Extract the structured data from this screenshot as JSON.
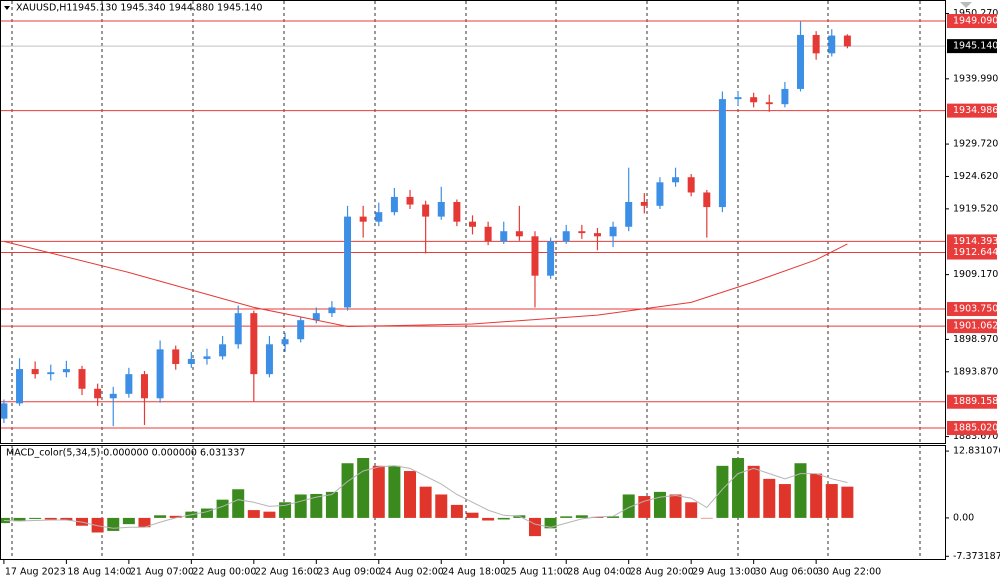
{
  "chart_data": {
    "type": "candlestick",
    "title": "XAUUSD,H1",
    "subtitle": "1945.130 1945.340 1944.880 1945.140",
    "x": [
      0,
      4,
      8,
      12,
      16,
      20,
      24,
      28,
      32,
      36,
      40,
      44,
      48,
      52,
      56,
      60,
      64,
      68,
      72,
      76,
      80,
      84,
      88,
      92,
      96,
      100,
      104,
      108,
      112,
      116,
      120,
      124,
      128,
      132,
      136,
      140,
      144,
      148,
      152,
      156,
      160,
      164,
      168,
      172,
      176,
      180,
      184,
      188,
      192,
      196,
      200,
      204,
      208,
      212,
      216
    ],
    "candles": [
      [
        1886.5,
        1889.5,
        1885.8,
        1888.9
      ],
      [
        1888.9,
        1896.0,
        1888.5,
        1894.3
      ],
      [
        1894.3,
        1895.5,
        1892.8,
        1893.5
      ],
      [
        1893.5,
        1895.0,
        1892.5,
        1893.8
      ],
      [
        1893.8,
        1895.6,
        1893.0,
        1894.3
      ],
      [
        1894.3,
        1894.8,
        1890.2,
        1891.2
      ],
      [
        1891.2,
        1892.0,
        1888.5,
        1889.7
      ],
      [
        1889.7,
        1891.5,
        1885.3,
        1890.4
      ],
      [
        1890.4,
        1894.5,
        1889.8,
        1893.5
      ],
      [
        1893.5,
        1894.0,
        1885.5,
        1889.7
      ],
      [
        1889.7,
        1898.8,
        1889.0,
        1897.4
      ],
      [
        1897.4,
        1898.0,
        1894.2,
        1895.1
      ],
      [
        1895.1,
        1897.0,
        1894.5,
        1895.9
      ],
      [
        1895.9,
        1897.5,
        1895.0,
        1896.3
      ],
      [
        1896.3,
        1899.5,
        1895.8,
        1898.2
      ],
      [
        1898.2,
        1904.3,
        1897.5,
        1903.1
      ],
      [
        1903.1,
        1903.5,
        1889.2,
        1893.5
      ],
      [
        1893.5,
        1899.5,
        1893.0,
        1898.2
      ],
      [
        1898.2,
        1900.0,
        1897.0,
        1899.0
      ],
      [
        1899.0,
        1902.5,
        1898.5,
        1902.0
      ],
      [
        1902.0,
        1904.0,
        1901.5,
        1903.1
      ],
      [
        1903.1,
        1905.0,
        1902.5,
        1904.0
      ],
      [
        1904.0,
        1920.0,
        1903.5,
        1918.3
      ],
      [
        1918.3,
        1920.0,
        1915.0,
        1917.5
      ],
      [
        1917.5,
        1920.5,
        1916.8,
        1919.0
      ],
      [
        1919.0,
        1922.8,
        1918.5,
        1921.4
      ],
      [
        1921.4,
        1922.5,
        1919.5,
        1920.2
      ],
      [
        1920.2,
        1920.8,
        1912.5,
        1918.3
      ],
      [
        1918.3,
        1923.0,
        1917.8,
        1920.6
      ],
      [
        1920.6,
        1921.0,
        1916.8,
        1917.5
      ],
      [
        1917.5,
        1918.5,
        1915.5,
        1916.7
      ],
      [
        1916.7,
        1917.5,
        1913.8,
        1914.4
      ],
      [
        1914.4,
        1917.5,
        1914.0,
        1916.0
      ],
      [
        1916.0,
        1920.0,
        1914.5,
        1915.2
      ],
      [
        1915.2,
        1916.0,
        1904.0,
        1909.0
      ],
      [
        1909.0,
        1915.0,
        1908.5,
        1914.4
      ],
      [
        1914.4,
        1917.0,
        1914.0,
        1916.0
      ],
      [
        1916.0,
        1917.0,
        1914.8,
        1915.7
      ],
      [
        1915.7,
        1916.5,
        1913.0,
        1915.2
      ],
      [
        1915.2,
        1917.5,
        1913.5,
        1916.7
      ],
      [
        1916.7,
        1926.0,
        1916.0,
        1920.6
      ],
      [
        1920.6,
        1922.0,
        1918.8,
        1920.0
      ],
      [
        1920.0,
        1924.5,
        1919.5,
        1923.7
      ],
      [
        1923.7,
        1926.0,
        1923.0,
        1924.5
      ],
      [
        1924.5,
        1925.0,
        1921.5,
        1922.1
      ],
      [
        1922.1,
        1922.5,
        1915.0,
        1919.8
      ],
      [
        1919.8,
        1938.0,
        1919.0,
        1936.8
      ],
      [
        1936.8,
        1938.0,
        1935.8,
        1937.1
      ],
      [
        1937.1,
        1937.8,
        1935.5,
        1936.3
      ],
      [
        1936.3,
        1937.5,
        1934.8,
        1936.0
      ],
      [
        1936.0,
        1939.5,
        1935.5,
        1938.4
      ],
      [
        1938.4,
        1949.0,
        1938.0,
        1946.9
      ],
      [
        1946.9,
        1947.5,
        1943.0,
        1944.0
      ],
      [
        1944.0,
        1947.8,
        1943.5,
        1946.8
      ],
      [
        1946.8,
        1947.0,
        1944.8,
        1945.1
      ]
    ],
    "up_color": "#3d8fe6",
    "down_color": "#e53935",
    "ma": {
      "color": "#e53935",
      "x": [
        0,
        32,
        64,
        80,
        88,
        120,
        152,
        176,
        192,
        208,
        216
      ],
      "values": [
        1914.4,
        1909.5,
        1904.0,
        1902.0,
        1901.0,
        1901.4,
        1902.8,
        1904.8,
        1908.0,
        1911.5,
        1914.0
      ]
    },
    "level_color": "#e83b3b",
    "levels": [
      {
        "value": 1949.09,
        "label": "1949.090"
      },
      {
        "value": 1934.986,
        "label": "1934.986"
      },
      {
        "value": 1914.393,
        "label": "1914.393"
      },
      {
        "value": 1912.644,
        "label": "1912.644"
      },
      {
        "value": 1903.75,
        "label": "1903.750"
      },
      {
        "value": 1901.062,
        "label": "1901.062"
      },
      {
        "value": 1889.158,
        "label": "1889.158"
      },
      {
        "value": 1885.02,
        "label": "1885.020"
      }
    ],
    "last_price": {
      "value": 1945.14,
      "label": "1945.140"
    },
    "xlim": [
      -1,
      241
    ],
    "xticks": [
      {
        "value": 0,
        "label": "17 Aug 2023"
      },
      {
        "value": 16,
        "label": "18 Aug 14:00"
      },
      {
        "value": 32,
        "label": "21 Aug 07:00"
      },
      {
        "value": 48,
        "label": "22 Aug 00:00"
      },
      {
        "value": 64,
        "label": "22 Aug 16:00"
      },
      {
        "value": 80,
        "label": "23 Aug 09:00"
      },
      {
        "value": 96,
        "label": "24 Aug 02:00"
      },
      {
        "value": 112,
        "label": "24 Aug 18:00"
      },
      {
        "value": 128,
        "label": "25 Aug 11:00"
      },
      {
        "value": 144,
        "label": "28 Aug 04:00"
      },
      {
        "value": 160,
        "label": "28 Aug 20:00"
      },
      {
        "value": 176,
        "label": "29 Aug 13:00"
      },
      {
        "value": 192,
        "label": "30 Aug 06:00"
      },
      {
        "value": 208,
        "label": "30 Aug 22:00"
      }
    ],
    "ylim": [
      1882.66,
      1952.4
    ],
    "yticks": [
      {
        "value": 1950.27,
        "label": "1950.270"
      },
      {
        "value": 1939.99,
        "label": "1939.990"
      },
      {
        "value": 1929.72,
        "label": "1929.720"
      },
      {
        "value": 1924.62,
        "label": "1924.620"
      },
      {
        "value": 1919.52,
        "label": "1919.520"
      },
      {
        "value": 1909.17,
        "label": "1909.170"
      },
      {
        "value": 1898.97,
        "label": "1898.970"
      },
      {
        "value": 1893.87,
        "label": "1893.870"
      },
      {
        "value": 1883.67,
        "label": "1883.670"
      }
    ],
    "macd": {
      "title": "MACD_color(5,34,5) 0.000000 0.000000 6.031337",
      "up_color": "#3a8a1e",
      "down_color": "#e0352b",
      "signal_color": "#b5b5b5",
      "values": [
        -1.0,
        -0.5,
        -0.2,
        -0.3,
        -0.5,
        -1.5,
        -2.8,
        -2.5,
        -1.2,
        -1.8,
        0.5,
        0.4,
        1.2,
        1.8,
        3.5,
        5.5,
        1.5,
        1.2,
        3.0,
        4.5,
        4.6,
        5.0,
        10.5,
        11.5,
        10.0,
        10.0,
        9.0,
        6.0,
        4.5,
        2.5,
        1.0,
        -0.5,
        -0.3,
        0.5,
        -3.5,
        -2.0,
        0.3,
        0.5,
        0.2,
        0.3,
        4.5,
        4.2,
        5.0,
        4.5,
        3.0,
        0.0,
        10.0,
        11.5,
        10.0,
        7.5,
        6.5,
        10.5,
        8.5,
        6.5,
        6.0
      ],
      "signal": [
        -0.5,
        -0.6,
        -0.5,
        -0.4,
        -0.4,
        -0.8,
        -1.5,
        -2.0,
        -1.8,
        -1.8,
        -0.8,
        0,
        0.6,
        1.2,
        2.2,
        3.5,
        3.0,
        2.2,
        2.4,
        3.2,
        4.0,
        4.5,
        7.0,
        9.0,
        9.8,
        10.0,
        9.5,
        8.0,
        6.5,
        4.5,
        3.0,
        1.5,
        0.5,
        0.3,
        -1.2,
        -1.8,
        -1.0,
        -0.2,
        0.2,
        0.3,
        2.0,
        3.2,
        4.0,
        4.3,
        3.8,
        2.0,
        5.5,
        8.5,
        9.5,
        8.5,
        7.5,
        8.5,
        8.5,
        7.5,
        6.8
      ],
      "ylim": [
        -7.7,
        14.0
      ],
      "yticks": [
        12.831076,
        {
          "value": 0,
          "label": "0.00"
        },
        -7.373187
      ]
    }
  }
}
